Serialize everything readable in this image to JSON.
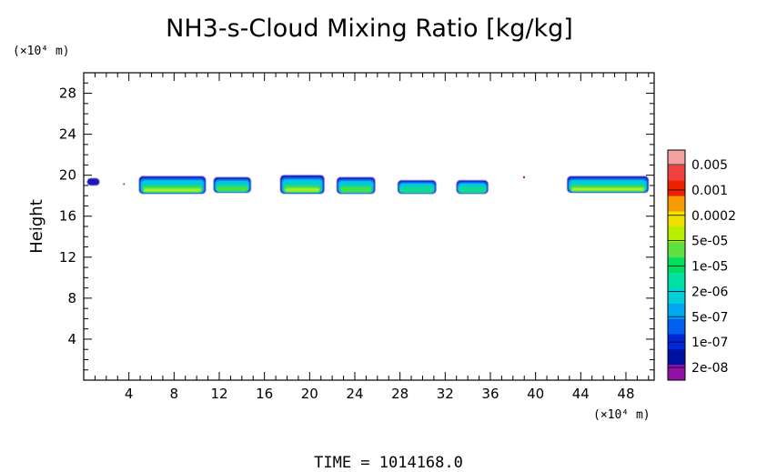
{
  "chart_data": {
    "type": "heatmap",
    "title": "NH3-s-Cloud Mixing Ratio [kg/kg]",
    "ylabel": "Height",
    "x_unit_label": "(×10⁴ m)",
    "y_unit_label": "(×10⁴ m)",
    "xlim": [
      0,
      50.5
    ],
    "ylim": [
      0,
      30
    ],
    "x_ticks": [
      4,
      8,
      12,
      16,
      20,
      24,
      28,
      32,
      36,
      40,
      44,
      48
    ],
    "y_ticks": [
      4,
      8,
      12,
      16,
      20,
      24,
      28
    ],
    "colorbar": {
      "labels": [
        "0.005",
        "0.001",
        "0.0002",
        "5e-05",
        "1e-05",
        "2e-06",
        "5e-07",
        "1e-07",
        "2e-08"
      ],
      "colors": [
        "#f3a0a0",
        "#f04040",
        "#ee2000",
        "#f59a00",
        "#f0e000",
        "#b8ee00",
        "#5ee040",
        "#00e060",
        "#00e0a0",
        "#00d0d8",
        "#00a8f0",
        "#0060f0",
        "#0028d8",
        "#0010a0",
        "#9010a8"
      ]
    },
    "cloud_patches": [
      {
        "x": [
          0.3,
          1.4
        ],
        "y": [
          19.0,
          19.7
        ],
        "level": 5e-08
      },
      {
        "x": [
          4.9,
          10.8
        ],
        "y": [
          18.2,
          19.9
        ],
        "level": 1e-05
      },
      {
        "x": [
          11.5,
          14.8
        ],
        "y": [
          18.3,
          19.8
        ],
        "level": 5e-06
      },
      {
        "x": [
          17.4,
          21.3
        ],
        "y": [
          18.2,
          20.0
        ],
        "level": 1e-05
      },
      {
        "x": [
          22.4,
          25.8
        ],
        "y": [
          18.2,
          19.8
        ],
        "level": 5e-06
      },
      {
        "x": [
          27.8,
          31.2
        ],
        "y": [
          18.2,
          19.5
        ],
        "level": 2e-06
      },
      {
        "x": [
          33.0,
          35.8
        ],
        "y": [
          18.2,
          19.5
        ],
        "level": 2e-06
      },
      {
        "x": [
          42.8,
          50.0
        ],
        "y": [
          18.3,
          19.9
        ],
        "level": 1e-05
      }
    ]
  },
  "footer": {
    "time_label": "TIME  =  1014168.0"
  }
}
